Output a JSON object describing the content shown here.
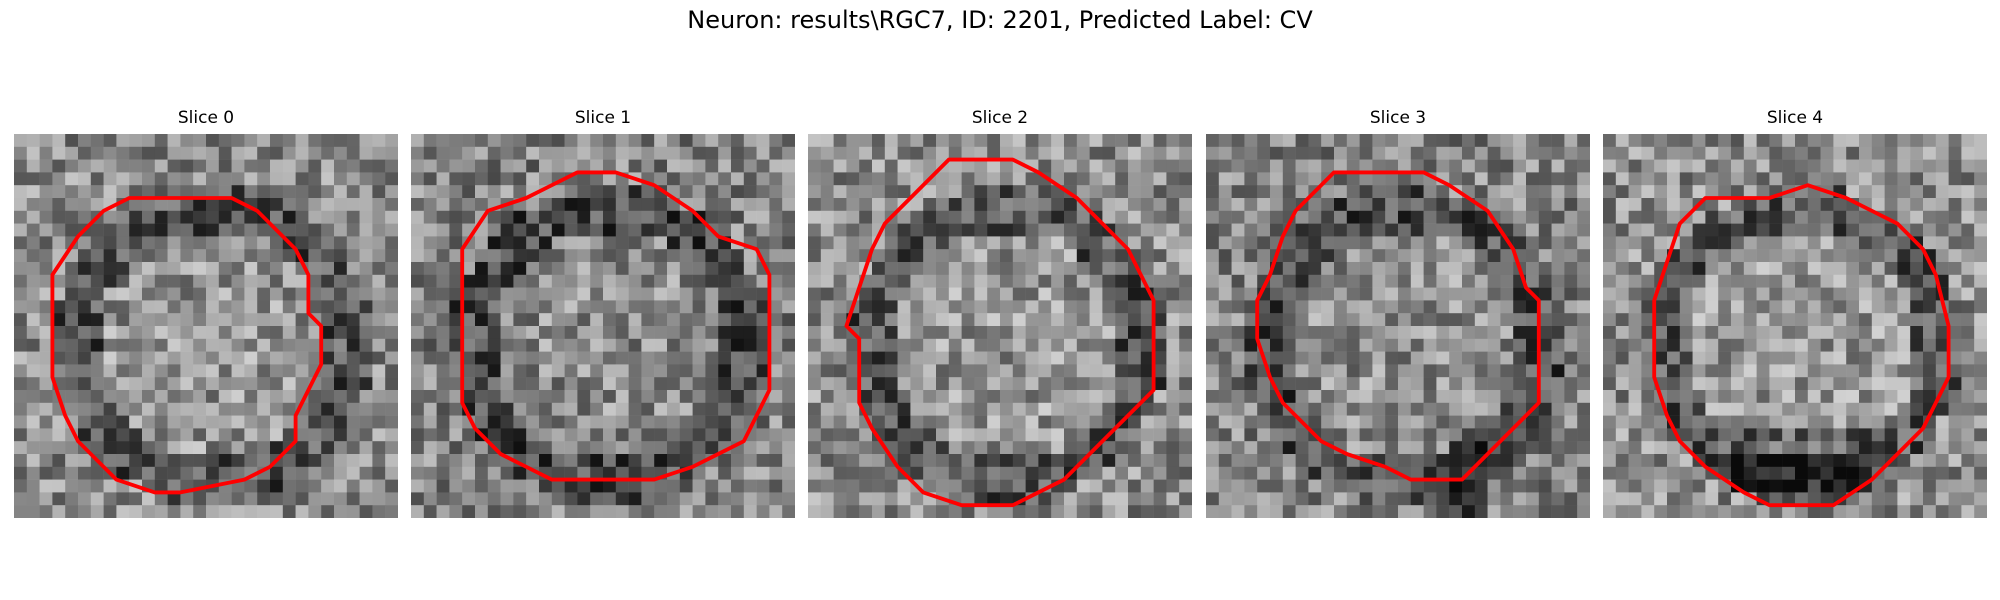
{
  "figure": {
    "title": "Neuron: results\\RGC7, ID: 2201, Predicted Label: CV"
  },
  "colors": {
    "background": "#ffffff",
    "contour": "#ff0000"
  },
  "slices": [
    {
      "title": "Slice 0"
    },
    {
      "title": "Slice 1"
    },
    {
      "title": "Slice 2"
    },
    {
      "title": "Slice 3"
    },
    {
      "title": "Slice 4"
    }
  ]
}
